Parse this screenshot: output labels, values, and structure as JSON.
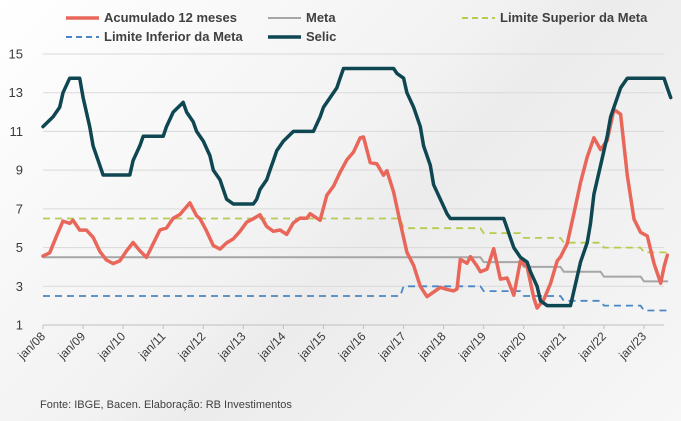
{
  "chart_data": {
    "type": "line",
    "source_note": "Fonte: IBGE, Bacen. Elaboração: RB Investimentos",
    "x_start": "2008-01",
    "x_end": "2023-07",
    "ylim": [
      1,
      15
    ],
    "yticks": [
      1,
      3,
      5,
      7,
      9,
      11,
      13,
      15
    ],
    "xticks": [
      "jan/08",
      "jan/09",
      "jan/10",
      "jan/11",
      "jan/12",
      "jan/13",
      "jan/14",
      "jan/15",
      "jan/16",
      "jan/17",
      "jan/18",
      "jan/19",
      "jan/20",
      "jan/21",
      "jan/22",
      "jan/23"
    ],
    "grid": "horizontal",
    "legend_position": "top",
    "series": [
      {
        "name": "Acumulado 12 meses",
        "color": "#e8675a",
        "style": "solid",
        "points": [
          [
            "2008-01",
            4.56
          ],
          [
            "2008-03",
            4.73
          ],
          [
            "2008-05",
            5.58
          ],
          [
            "2008-07",
            6.37
          ],
          [
            "2008-09",
            6.25
          ],
          [
            "2008-10",
            6.41
          ],
          [
            "2008-12",
            5.9
          ],
          [
            "2009-02",
            5.9
          ],
          [
            "2009-04",
            5.53
          ],
          [
            "2009-06",
            4.8
          ],
          [
            "2009-08",
            4.36
          ],
          [
            "2009-10",
            4.17
          ],
          [
            "2009-12",
            4.31
          ],
          [
            "2010-02",
            4.83
          ],
          [
            "2010-04",
            5.26
          ],
          [
            "2010-06",
            4.84
          ],
          [
            "2010-08",
            4.49
          ],
          [
            "2010-10",
            5.2
          ],
          [
            "2010-12",
            5.91
          ],
          [
            "2011-02",
            6.01
          ],
          [
            "2011-04",
            6.51
          ],
          [
            "2011-06",
            6.71
          ],
          [
            "2011-09",
            7.31
          ],
          [
            "2011-11",
            6.64
          ],
          [
            "2011-12",
            6.5
          ],
          [
            "2012-02",
            5.85
          ],
          [
            "2012-04",
            5.1
          ],
          [
            "2012-06",
            4.92
          ],
          [
            "2012-08",
            5.24
          ],
          [
            "2012-10",
            5.45
          ],
          [
            "2012-12",
            5.84
          ],
          [
            "2013-02",
            6.31
          ],
          [
            "2013-04",
            6.49
          ],
          [
            "2013-06",
            6.7
          ],
          [
            "2013-08",
            6.09
          ],
          [
            "2013-10",
            5.84
          ],
          [
            "2013-12",
            5.91
          ],
          [
            "2014-02",
            5.68
          ],
          [
            "2014-04",
            6.28
          ],
          [
            "2014-06",
            6.52
          ],
          [
            "2014-08",
            6.51
          ],
          [
            "2014-09",
            6.75
          ],
          [
            "2014-12",
            6.41
          ],
          [
            "2015-02",
            7.7
          ],
          [
            "2015-04",
            8.17
          ],
          [
            "2015-06",
            8.89
          ],
          [
            "2015-08",
            9.53
          ],
          [
            "2015-10",
            9.93
          ],
          [
            "2015-12",
            10.67
          ],
          [
            "2016-01",
            10.71
          ],
          [
            "2016-03",
            9.39
          ],
          [
            "2016-05",
            9.32
          ],
          [
            "2016-07",
            8.74
          ],
          [
            "2016-08",
            8.97
          ],
          [
            "2016-10",
            7.87
          ],
          [
            "2016-12",
            6.29
          ],
          [
            "2017-02",
            4.76
          ],
          [
            "2017-04",
            4.08
          ],
          [
            "2017-06",
            3.0
          ],
          [
            "2017-08",
            2.46
          ],
          [
            "2017-10",
            2.7
          ],
          [
            "2017-12",
            2.95
          ],
          [
            "2018-02",
            2.84
          ],
          [
            "2018-04",
            2.76
          ],
          [
            "2018-05",
            2.86
          ],
          [
            "2018-06",
            4.39
          ],
          [
            "2018-08",
            4.19
          ],
          [
            "2018-09",
            4.53
          ],
          [
            "2018-11",
            4.05
          ],
          [
            "2018-12",
            3.75
          ],
          [
            "2019-02",
            3.89
          ],
          [
            "2019-04",
            4.94
          ],
          [
            "2019-06",
            3.37
          ],
          [
            "2019-08",
            3.43
          ],
          [
            "2019-10",
            2.54
          ],
          [
            "2019-12",
            4.31
          ],
          [
            "2020-02",
            4.01
          ],
          [
            "2020-04",
            2.4
          ],
          [
            "2020-05",
            1.88
          ],
          [
            "2020-07",
            2.31
          ],
          [
            "2020-09",
            3.14
          ],
          [
            "2020-11",
            4.31
          ],
          [
            "2020-12",
            4.52
          ],
          [
            "2021-02",
            5.2
          ],
          [
            "2021-04",
            6.76
          ],
          [
            "2021-06",
            8.35
          ],
          [
            "2021-08",
            9.68
          ],
          [
            "2021-10",
            10.67
          ],
          [
            "2021-12",
            10.06
          ],
          [
            "2022-02",
            10.54
          ],
          [
            "2022-04",
            12.13
          ],
          [
            "2022-06",
            11.89
          ],
          [
            "2022-08",
            8.73
          ],
          [
            "2022-10",
            6.47
          ],
          [
            "2022-12",
            5.79
          ],
          [
            "2023-02",
            5.6
          ],
          [
            "2023-04",
            4.18
          ],
          [
            "2023-06",
            3.16
          ],
          [
            "2023-07",
            3.99
          ],
          [
            "2023-08",
            4.61
          ]
        ]
      },
      {
        "name": "Meta",
        "color": "#a6a6a6",
        "style": "solid",
        "points": [
          [
            "2008-01",
            4.5
          ],
          [
            "2018-12",
            4.5
          ],
          [
            "2019-01",
            4.25
          ],
          [
            "2019-12",
            4.25
          ],
          [
            "2020-01",
            4.0
          ],
          [
            "2020-12",
            4.0
          ],
          [
            "2021-01",
            3.75
          ],
          [
            "2021-12",
            3.75
          ],
          [
            "2022-01",
            3.5
          ],
          [
            "2022-12",
            3.5
          ],
          [
            "2023-01",
            3.25
          ],
          [
            "2023-08",
            3.25
          ]
        ]
      },
      {
        "name": "Limite Superior da Meta",
        "color": "#b5cc4d",
        "style": "dashed",
        "points": [
          [
            "2008-01",
            6.5
          ],
          [
            "2016-12",
            6.5
          ],
          [
            "2017-01",
            6.0
          ],
          [
            "2018-12",
            6.0
          ],
          [
            "2019-01",
            5.75
          ],
          [
            "2019-12",
            5.75
          ],
          [
            "2020-01",
            5.5
          ],
          [
            "2020-12",
            5.5
          ],
          [
            "2021-01",
            5.25
          ],
          [
            "2021-12",
            5.25
          ],
          [
            "2022-01",
            5.0
          ],
          [
            "2022-12",
            5.0
          ],
          [
            "2023-01",
            4.75
          ],
          [
            "2023-08",
            4.75
          ]
        ]
      },
      {
        "name": "Limite Inferior da Meta",
        "color": "#4a86c5",
        "style": "dashed",
        "points": [
          [
            "2008-01",
            2.5
          ],
          [
            "2016-12",
            2.5
          ],
          [
            "2017-01",
            3.0
          ],
          [
            "2018-12",
            3.0
          ],
          [
            "2019-01",
            2.75
          ],
          [
            "2019-12",
            2.75
          ],
          [
            "2020-01",
            2.5
          ],
          [
            "2020-12",
            2.5
          ],
          [
            "2021-01",
            2.25
          ],
          [
            "2021-12",
            2.25
          ],
          [
            "2022-01",
            2.0
          ],
          [
            "2022-12",
            2.0
          ],
          [
            "2023-01",
            1.75
          ],
          [
            "2023-08",
            1.75
          ]
        ]
      },
      {
        "name": "Selic",
        "color": "#0e4752",
        "style": "solid",
        "points": [
          [
            "2008-01",
            11.25
          ],
          [
            "2008-04",
            11.75
          ],
          [
            "2008-06",
            12.25
          ],
          [
            "2008-07",
            13.0
          ],
          [
            "2008-09",
            13.75
          ],
          [
            "2008-12",
            13.75
          ],
          [
            "2009-01",
            12.75
          ],
          [
            "2009-03",
            11.25
          ],
          [
            "2009-04",
            10.25
          ],
          [
            "2009-06",
            9.25
          ],
          [
            "2009-07",
            8.75
          ],
          [
            "2010-03",
            8.75
          ],
          [
            "2010-04",
            9.5
          ],
          [
            "2010-06",
            10.25
          ],
          [
            "2010-07",
            10.75
          ],
          [
            "2011-01",
            10.75
          ],
          [
            "2011-02",
            11.25
          ],
          [
            "2011-04",
            12.0
          ],
          [
            "2011-07",
            12.5
          ],
          [
            "2011-08",
            12.0
          ],
          [
            "2011-10",
            11.5
          ],
          [
            "2011-11",
            11.0
          ],
          [
            "2012-01",
            10.5
          ],
          [
            "2012-03",
            9.75
          ],
          [
            "2012-04",
            9.0
          ],
          [
            "2012-06",
            8.5
          ],
          [
            "2012-08",
            7.5
          ],
          [
            "2012-10",
            7.25
          ],
          [
            "2013-04",
            7.25
          ],
          [
            "2013-05",
            7.5
          ],
          [
            "2013-06",
            8.0
          ],
          [
            "2013-08",
            8.5
          ],
          [
            "2013-09",
            9.0
          ],
          [
            "2013-10",
            9.5
          ],
          [
            "2013-11",
            10.0
          ],
          [
            "2014-01",
            10.5
          ],
          [
            "2014-04",
            11.0
          ],
          [
            "2014-10",
            11.0
          ],
          [
            "2014-12",
            11.75
          ],
          [
            "2015-01",
            12.25
          ],
          [
            "2015-03",
            12.75
          ],
          [
            "2015-05",
            13.25
          ],
          [
            "2015-06",
            13.75
          ],
          [
            "2015-07",
            14.25
          ],
          [
            "2016-10",
            14.25
          ],
          [
            "2016-11",
            14.0
          ],
          [
            "2017-01",
            13.75
          ],
          [
            "2017-02",
            13.0
          ],
          [
            "2017-04",
            12.25
          ],
          [
            "2017-06",
            11.25
          ],
          [
            "2017-07",
            10.25
          ],
          [
            "2017-09",
            9.25
          ],
          [
            "2017-10",
            8.25
          ],
          [
            "2017-12",
            7.5
          ],
          [
            "2018-02",
            6.75
          ],
          [
            "2018-03",
            6.5
          ],
          [
            "2019-07",
            6.5
          ],
          [
            "2019-08",
            6.0
          ],
          [
            "2019-09",
            5.5
          ],
          [
            "2019-10",
            5.0
          ],
          [
            "2019-12",
            4.5
          ],
          [
            "2020-02",
            4.25
          ],
          [
            "2020-03",
            3.75
          ],
          [
            "2020-05",
            3.0
          ],
          [
            "2020-06",
            2.25
          ],
          [
            "2020-08",
            2.0
          ],
          [
            "2021-03",
            2.0
          ],
          [
            "2021-05",
            3.5
          ],
          [
            "2021-06",
            4.25
          ],
          [
            "2021-08",
            5.25
          ],
          [
            "2021-09",
            6.25
          ],
          [
            "2021-10",
            7.75
          ],
          [
            "2021-12",
            9.25
          ],
          [
            "2022-02",
            10.75
          ],
          [
            "2022-03",
            11.75
          ],
          [
            "2022-05",
            12.75
          ],
          [
            "2022-06",
            13.25
          ],
          [
            "2022-08",
            13.75
          ],
          [
            "2023-07",
            13.75
          ],
          [
            "2023-08",
            13.25
          ],
          [
            "2023-09",
            12.75
          ]
        ]
      }
    ]
  }
}
